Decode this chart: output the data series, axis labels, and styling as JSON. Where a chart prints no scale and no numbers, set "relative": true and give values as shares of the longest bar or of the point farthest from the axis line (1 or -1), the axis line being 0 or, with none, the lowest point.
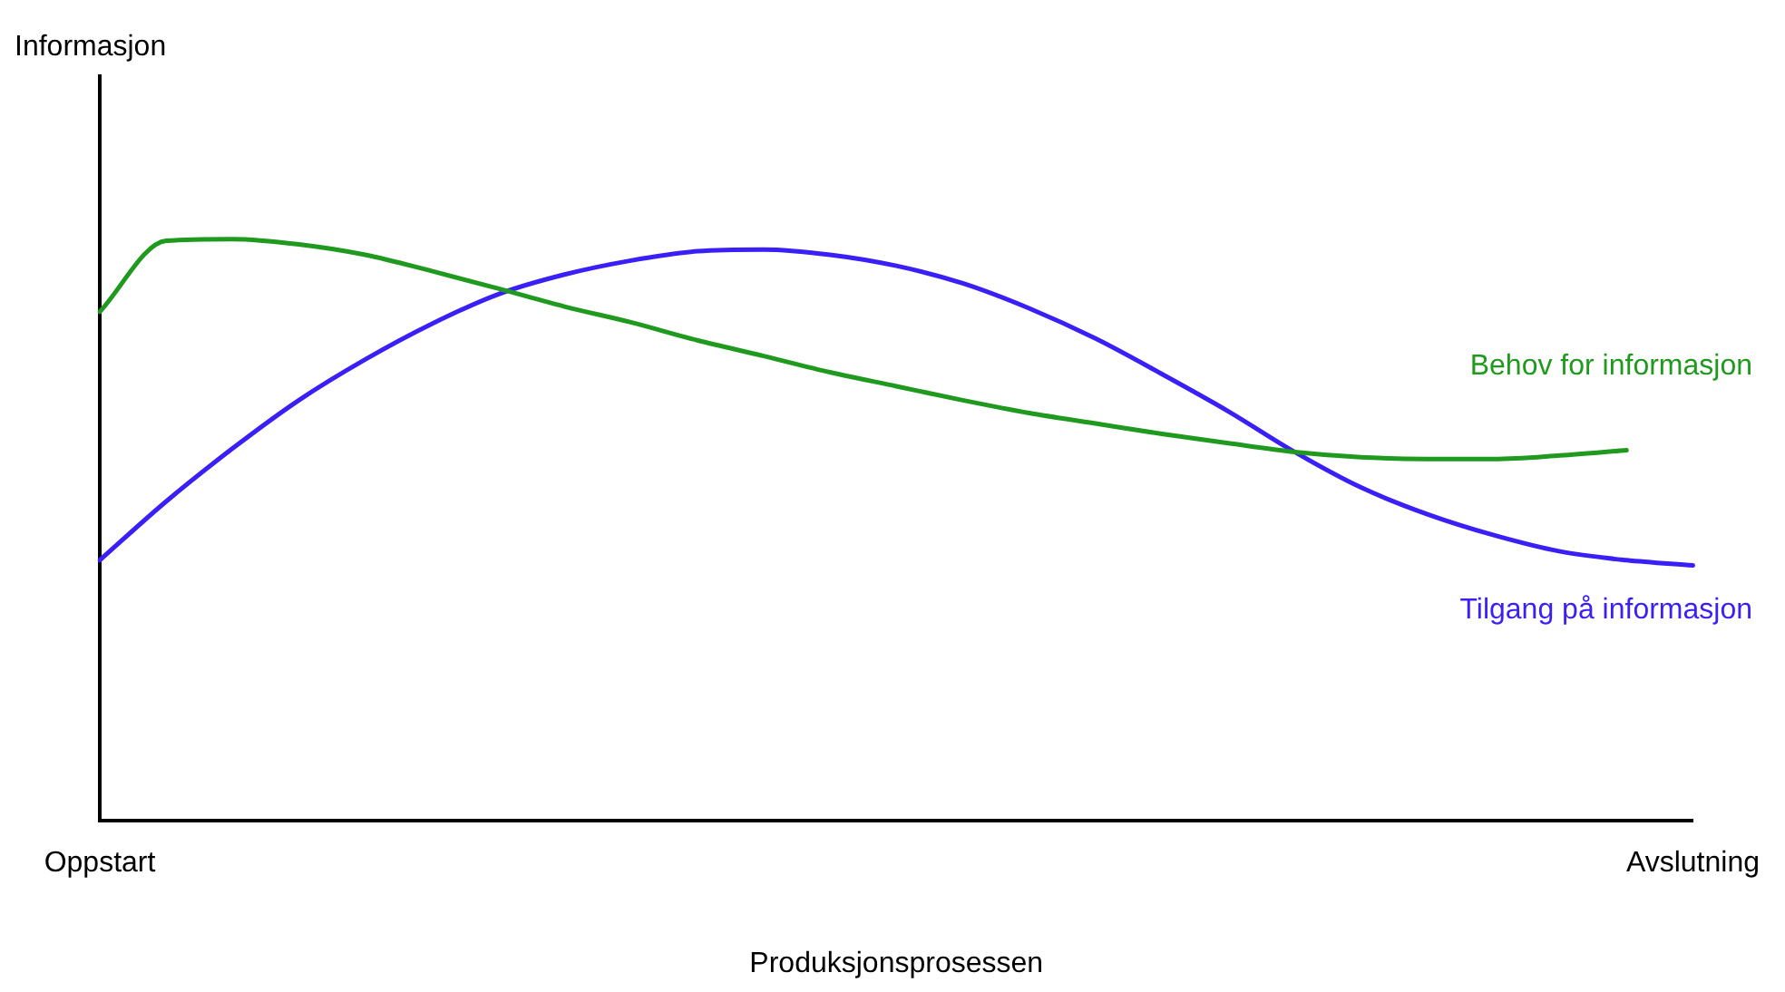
{
  "chart_data": {
    "type": "line",
    "relative": true,
    "xlabel": "Produksjonsprosessen",
    "annotations": [
      "Informasjon"
    ],
    "legend": false,
    "marker": "none",
    "line_style": "solid",
    "grid": false,
    "categories": [
      "Oppstart",
      null,
      null,
      null,
      null,
      null,
      null,
      null,
      null,
      null,
      null,
      null,
      null,
      null,
      null,
      null,
      null,
      null,
      null,
      null,
      null,
      null,
      null,
      null,
      "Avslutning"
    ],
    "series": [
      {
        "name": "Behov for informasjon",
        "color": "#1f9a1f",
        "values": [
          0.875,
          0.997,
          1,
          0.991,
          0.973,
          0.945,
          0.915,
          0.884,
          0.857,
          0.826,
          0.799,
          0.771,
          0.747,
          0.723,
          0.701,
          0.683,
          0.665,
          0.649,
          0.634,
          0.625,
          0.622,
          0.622,
          0.628,
          0.637,
          null
        ]
      },
      {
        "name": "Tilgang på informasjon",
        "color": "#3a1ff7",
        "values": [
          0.448,
          0.549,
          0.64,
          0.723,
          0.793,
          0.854,
          0.905,
          0.939,
          0.963,
          0.979,
          0.982,
          0.973,
          0.954,
          0.924,
          0.881,
          0.829,
          0.768,
          0.704,
          0.634,
          0.573,
          0.527,
          0.491,
          0.463,
          0.448,
          0.439
        ]
      }
    ]
  }
}
